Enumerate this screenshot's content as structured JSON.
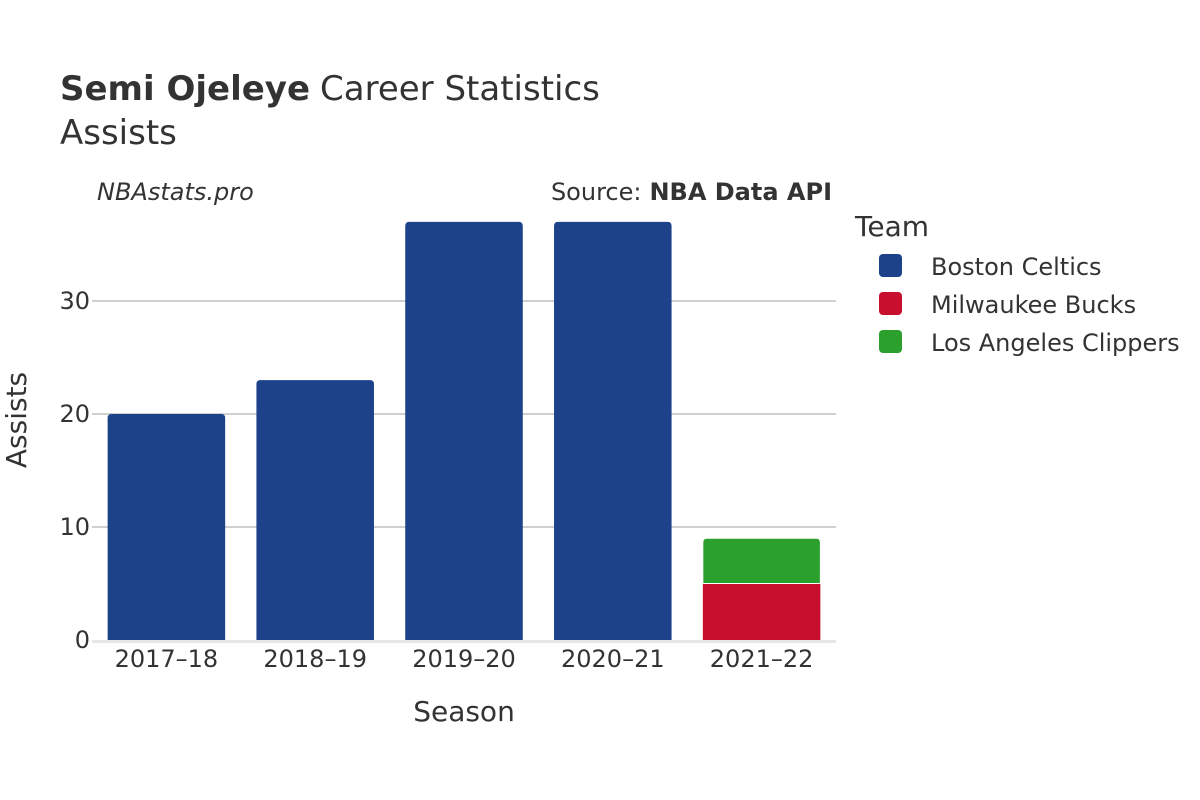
{
  "title": {
    "player": "Semi Ojeleye",
    "rest": "Career Statistics",
    "subtitle": "Assists"
  },
  "watermark": "NBAstats.pro",
  "source": {
    "label": "Source:",
    "value": "NBA Data API"
  },
  "chart_data": {
    "type": "bar",
    "stacked": true,
    "categories": [
      "2017–18",
      "2018–19",
      "2019–20",
      "2020–21",
      "2021–22"
    ],
    "series": [
      {
        "name": "Boston Celtics",
        "color": "#1d428a",
        "values": [
          20,
          23,
          37,
          37,
          0
        ]
      },
      {
        "name": "Milwaukee Bucks",
        "color": "#c8102e",
        "values": [
          0,
          0,
          0,
          0,
          5
        ]
      },
      {
        "name": "Los Angeles Clippers",
        "color": "#2ca02c",
        "values": [
          0,
          0,
          0,
          0,
          4
        ]
      }
    ],
    "xlabel": "Season",
    "ylabel": "Assists",
    "ylim": [
      0,
      40
    ],
    "yticks": [
      0,
      10,
      20,
      30
    ],
    "grid": true,
    "legend": {
      "title": "Team",
      "position": "right"
    }
  }
}
